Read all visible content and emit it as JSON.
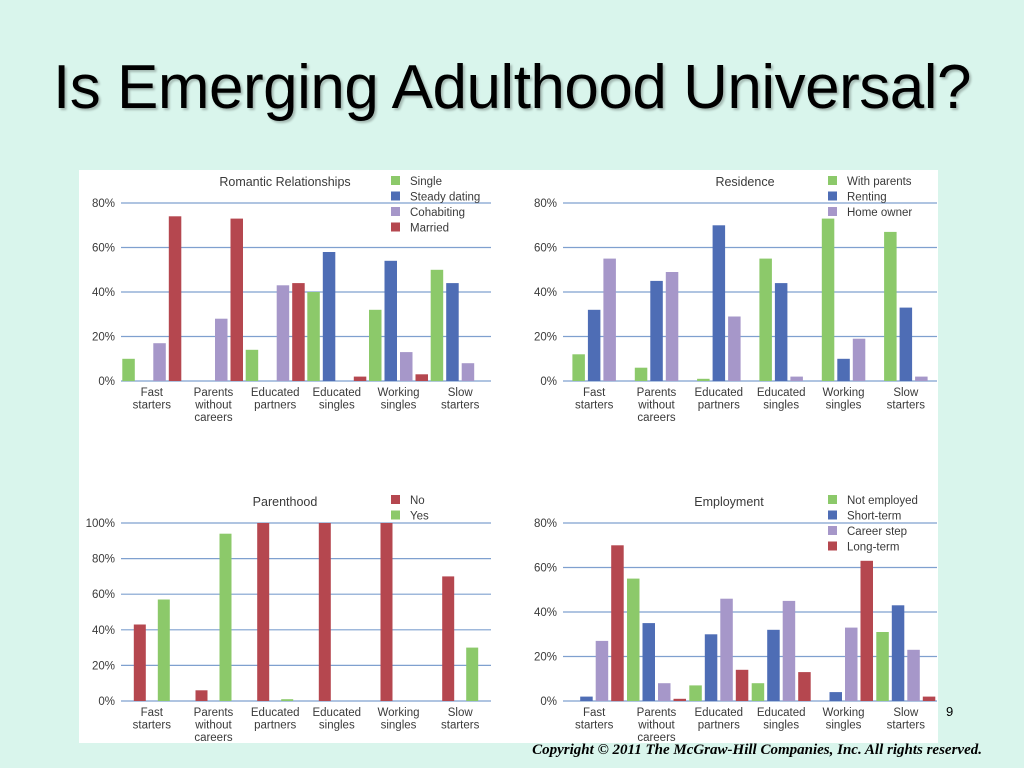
{
  "slide": {
    "title": "Is Emerging Adulthood Universal?",
    "page_number": "9",
    "copyright": "Copyright © 2011 The McGraw-Hill Companies, Inc. All rights reserved."
  },
  "chart_data": [
    {
      "type": "bar",
      "title": "Romantic Relationships",
      "categories": [
        [
          "Fast",
          "starters"
        ],
        [
          "Parents",
          "without",
          "careers"
        ],
        [
          "Educated",
          "partners"
        ],
        [
          "Educated",
          "singles"
        ],
        [
          "Working",
          "singles"
        ],
        [
          "Slow",
          "starters"
        ]
      ],
      "ylim": [
        0,
        80
      ],
      "yticks": [
        0,
        20,
        40,
        60,
        80
      ],
      "tick_suffix": "%",
      "grid": true,
      "legend_position": "top-right",
      "series": [
        {
          "name": "Single",
          "color": "#8cc96a",
          "values": [
            10,
            0,
            14,
            40,
            32,
            50
          ]
        },
        {
          "name": "Steady dating",
          "color": "#4e6db5",
          "values": [
            0,
            0,
            0,
            58,
            54,
            44
          ]
        },
        {
          "name": "Cohabiting",
          "color": "#a697c9",
          "values": [
            17,
            28,
            43,
            0,
            13,
            8
          ]
        },
        {
          "name": "Married",
          "color": "#b5474f",
          "values": [
            74,
            73,
            44,
            2,
            3,
            0
          ]
        }
      ]
    },
    {
      "type": "bar",
      "title": "Residence",
      "categories": [
        [
          "Fast",
          "starters"
        ],
        [
          "Parents",
          "without",
          "careers"
        ],
        [
          "Educated",
          "partners"
        ],
        [
          "Educated",
          "singles"
        ],
        [
          "Working",
          "singles"
        ],
        [
          "Slow",
          "starters"
        ]
      ],
      "ylim": [
        0,
        80
      ],
      "yticks": [
        0,
        20,
        40,
        60,
        80
      ],
      "tick_suffix": "%",
      "grid": true,
      "legend_position": "top-right",
      "series": [
        {
          "name": "With parents",
          "color": "#8cc96a",
          "values": [
            12,
            6,
            1,
            55,
            73,
            67
          ]
        },
        {
          "name": "Renting",
          "color": "#4e6db5",
          "values": [
            32,
            45,
            70,
            44,
            10,
            33
          ]
        },
        {
          "name": "Home owner",
          "color": "#a697c9",
          "values": [
            55,
            49,
            29,
            2,
            19,
            2
          ]
        }
      ]
    },
    {
      "type": "bar",
      "title": "Parenthood",
      "categories": [
        [
          "Fast",
          "starters"
        ],
        [
          "Parents",
          "without",
          "careers"
        ],
        [
          "Educated",
          "partners"
        ],
        [
          "Educated",
          "singles"
        ],
        [
          "Working",
          "singles"
        ],
        [
          "Slow",
          "starters"
        ]
      ],
      "ylim": [
        0,
        100
      ],
      "yticks": [
        0,
        20,
        40,
        60,
        80,
        100
      ],
      "tick_suffix": "%",
      "grid": true,
      "legend_position": "top-right",
      "series": [
        {
          "name": "No",
          "color": "#b5474f",
          "values": [
            43,
            6,
            100,
            100,
            100,
            70
          ]
        },
        {
          "name": "Yes",
          "color": "#8cc96a",
          "values": [
            57,
            94,
            1,
            0,
            0,
            30
          ]
        }
      ]
    },
    {
      "type": "bar",
      "title": "Employment",
      "categories": [
        [
          "Fast",
          "starters"
        ],
        [
          "Parents",
          "without",
          "careers"
        ],
        [
          "Educated",
          "partners"
        ],
        [
          "Educated",
          "singles"
        ],
        [
          "Working",
          "singles"
        ],
        [
          "Slow",
          "starters"
        ]
      ],
      "ylim": [
        0,
        80
      ],
      "yticks": [
        0,
        20,
        40,
        60,
        80
      ],
      "tick_suffix": "%",
      "grid": true,
      "legend_position": "top-right",
      "series": [
        {
          "name": "Not employed",
          "color": "#8cc96a",
          "values": [
            0,
            55,
            7,
            8,
            0,
            31
          ]
        },
        {
          "name": "Short-term",
          "color": "#4e6db5",
          "values": [
            2,
            35,
            30,
            32,
            4,
            43
          ]
        },
        {
          "name": "Career step",
          "color": "#a697c9",
          "values": [
            27,
            8,
            46,
            45,
            33,
            23
          ]
        },
        {
          "name": "Long-term",
          "color": "#b5474f",
          "values": [
            70,
            1,
            14,
            13,
            63,
            2
          ]
        }
      ]
    }
  ]
}
